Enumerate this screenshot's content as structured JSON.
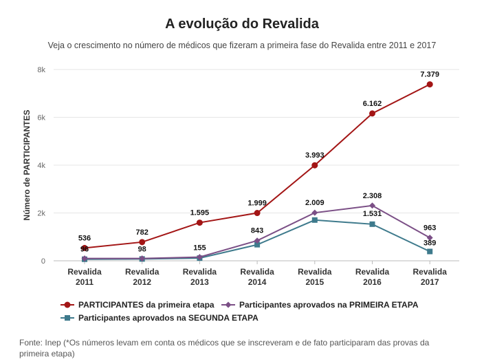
{
  "chart_data": {
    "type": "line",
    "title": "A evolução do Revalida",
    "subtitle": "Veja o crescimento no número de médicos que fizeram a primeira fase do Revalida entre 2011 e 2017",
    "ylabel": "Número de PARTICIPANTES",
    "ylim": [
      0,
      8000
    ],
    "yticks": [
      {
        "value": 0,
        "label": "0"
      },
      {
        "value": 2000,
        "label": "2k"
      },
      {
        "value": 4000,
        "label": "4k"
      },
      {
        "value": 6000,
        "label": "6k"
      },
      {
        "value": 8000,
        "label": "8k"
      }
    ],
    "categories": [
      [
        "Revalida",
        "2011"
      ],
      [
        "Revalida",
        "2012"
      ],
      [
        "Revalida",
        "2013"
      ],
      [
        "Revalida",
        "2014"
      ],
      [
        "Revalida",
        "2015"
      ],
      [
        "Revalida",
        "2016"
      ],
      [
        "Revalida",
        "2017"
      ]
    ],
    "series": [
      {
        "name": "PARTICIPANTES da primeira etapa",
        "color": "#a31515",
        "marker": "circle",
        "values": [
          536,
          782,
          1595,
          1999,
          3993,
          6162,
          7379
        ],
        "labels": [
          "536",
          "782",
          "1.595",
          "1.999",
          "3.993",
          "6.162",
          "7.379"
        ]
      },
      {
        "name": "Participantes aprovados na PRIMEIRA ETAPA",
        "color": "#7b4f86",
        "marker": "diamond",
        "values": [
          96,
          98,
          155,
          843,
          2009,
          2308,
          963
        ],
        "labels": [
          "96",
          "98",
          "155",
          "843",
          "2.009",
          "2.308",
          "963"
        ]
      },
      {
        "name": "Participantes aprovados na SEGUNDA ETAPA",
        "color": "#3e7a8c",
        "marker": "square",
        "values": [
          65,
          76,
          111,
          673,
          1704,
          1531,
          389
        ],
        "labels": [
          null,
          null,
          null,
          null,
          null,
          "1.531",
          "389"
        ]
      }
    ],
    "grid": true,
    "legend_position": "bottom"
  },
  "source": "Fonte: Inep (*Os números levam em conta os médicos que se inscreveram e de fato participaram das provas da primeira etapa)"
}
